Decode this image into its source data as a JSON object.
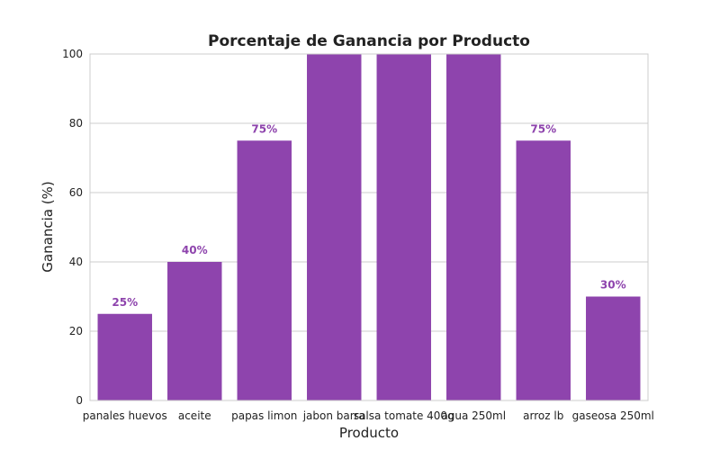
{
  "chart_data": {
    "type": "bar",
    "title": "Porcentaje de Ganancia por Producto",
    "xlabel": "Producto",
    "ylabel": "Ganancia (%)",
    "categories": [
      "panales huevos",
      "aceite",
      "papas limon",
      "jabon barra",
      "salsa tomate 400g",
      "agua 250ml",
      "arroz lb",
      "gaseosa 250ml"
    ],
    "values": [
      25,
      40,
      75,
      100,
      100,
      100,
      75,
      30
    ],
    "data_labels": [
      "25%",
      "40%",
      "75%",
      "",
      "",
      "",
      "75%",
      "30%"
    ],
    "ylim": [
      0,
      100
    ],
    "yticks": [
      0,
      20,
      40,
      60,
      80,
      100
    ],
    "grid": true,
    "bar_color": "#8e44ad",
    "label_color": "#8e44ad"
  }
}
